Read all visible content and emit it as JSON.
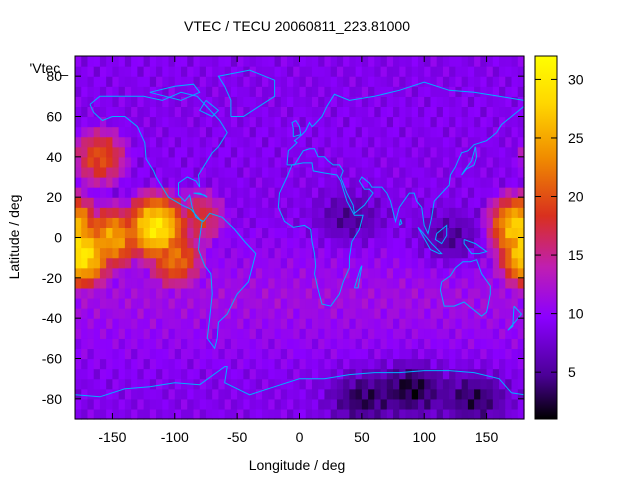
{
  "chart_data": {
    "type": "heatmap",
    "title": "VTEC / TECU 20060811_223.81000",
    "xlabel": "Longitude / deg",
    "ylabel": "Latitude / deg",
    "key_label": "'Vtec_",
    "xlim": [
      -180,
      180
    ],
    "ylim": [
      -90,
      90
    ],
    "x_ticks": [
      -150,
      -100,
      -50,
      0,
      50,
      100,
      150
    ],
    "y_ticks": [
      -80,
      -60,
      -40,
      -20,
      0,
      20,
      40,
      60,
      80
    ],
    "x_tick_labels": [
      "-150",
      "-100",
      "-50",
      "0",
      "50",
      "100",
      "150"
    ],
    "y_tick_labels": [
      "-80",
      "-60",
      "-40",
      "-20",
      "0",
      "20",
      "40",
      "60",
      "80"
    ],
    "colorbar": {
      "range": [
        1,
        32
      ],
      "ticks": [
        5,
        10,
        15,
        20,
        25,
        30
      ],
      "tick_labels": [
        "5",
        "10",
        "15",
        "20",
        "25",
        "30"
      ]
    },
    "grid_resolution_deg": 5,
    "field_features": [
      {
        "lon": -115,
        "lat": 5,
        "value": 30
      },
      {
        "lon": -150,
        "lat": 0,
        "value": 25
      },
      {
        "lon": -175,
        "lat": -8,
        "value": 30
      },
      {
        "lon": -160,
        "lat": 40,
        "value": 20
      },
      {
        "lon": 175,
        "lat": 5,
        "value": 28
      },
      {
        "lon": -100,
        "lat": -10,
        "value": 22
      },
      {
        "lon": -80,
        "lat": 10,
        "value": 18
      }
    ],
    "background_value": 9,
    "lows": [
      {
        "lon": 50,
        "lat": -80,
        "value": 3
      },
      {
        "lon": 90,
        "lat": -75,
        "value": 2
      },
      {
        "lon": 140,
        "lat": -80,
        "value": 3
      },
      {
        "lon": 120,
        "lat": 0,
        "value": 5
      },
      {
        "lon": 40,
        "lat": 10,
        "value": 5
      }
    ],
    "colors": {
      "palette": [
        "#000000",
        "#4b0096",
        "#8b00ff",
        "#c01fb0",
        "#d9301e",
        "#f08c00",
        "#ffd700",
        "#ffff00"
      ],
      "coastline": "#00b0ff"
    }
  }
}
